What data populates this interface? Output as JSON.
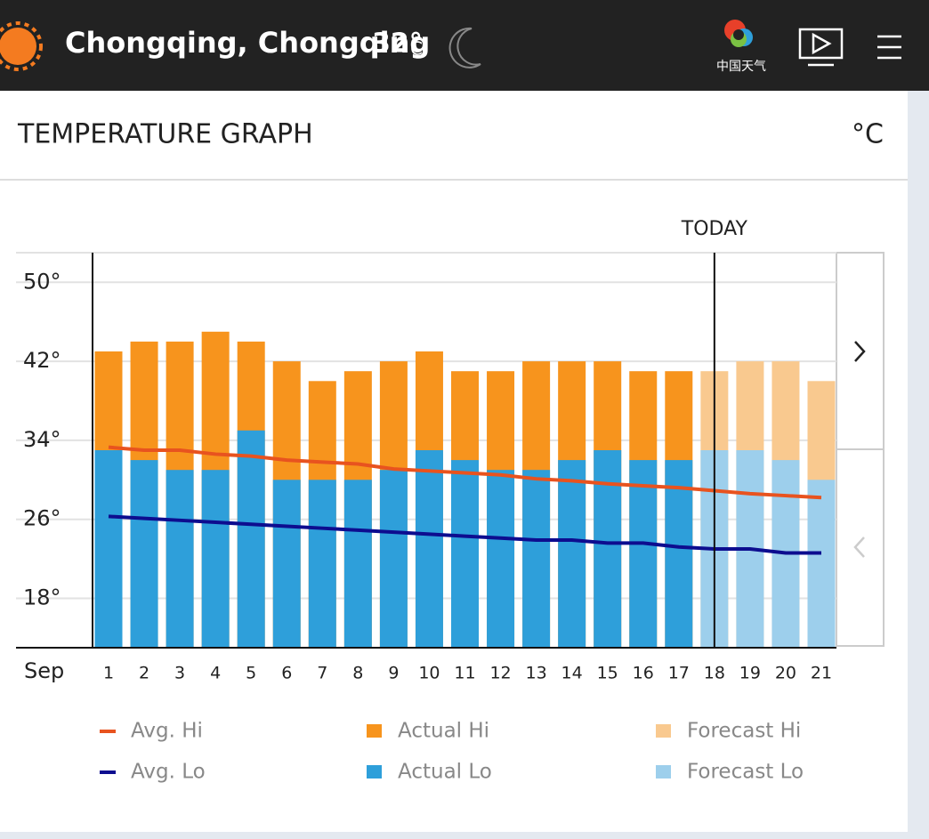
{
  "header": {
    "city": "Chongqing, Chongqing",
    "temperature": "32°",
    "unit": "C",
    "logo_text": "中国天气"
  },
  "panel": {
    "title": "TEMPERATURE GRAPH",
    "unit": "°C"
  },
  "chart_data": {
    "type": "bar",
    "x_label": "Sep",
    "categories": [
      "1",
      "2",
      "3",
      "4",
      "5",
      "6",
      "7",
      "8",
      "9",
      "10",
      "11",
      "12",
      "13",
      "14",
      "15",
      "16",
      "17",
      "18",
      "19",
      "20",
      "21"
    ],
    "ylim": [
      13,
      53
    ],
    "yticks": [
      {
        "value": 18,
        "label": "18°"
      },
      {
        "value": 26,
        "label": "26°"
      },
      {
        "value": 34,
        "label": "34°"
      },
      {
        "value": 42,
        "label": "42°"
      },
      {
        "value": 50,
        "label": "50°"
      }
    ],
    "grid": true,
    "annotations": [
      {
        "text": "TODAY",
        "x": "18"
      }
    ],
    "series": [
      {
        "name": "Actual Hi",
        "kind": "bar",
        "color": "#f7941d",
        "values": [
          43,
          44,
          44,
          45,
          44,
          42,
          40,
          41,
          42,
          43,
          41,
          41,
          42,
          42,
          42,
          41,
          41,
          null,
          null,
          null,
          null
        ]
      },
      {
        "name": "Forecast Hi",
        "kind": "bar",
        "color": "#f9c98f",
        "values": [
          null,
          null,
          null,
          null,
          null,
          null,
          null,
          null,
          null,
          null,
          null,
          null,
          null,
          null,
          null,
          null,
          null,
          41,
          42,
          42,
          40
        ]
      },
      {
        "name": "Actual Lo",
        "kind": "bar",
        "color": "#2e9fda",
        "values": [
          33,
          32,
          31,
          31,
          35,
          30,
          30,
          30,
          31,
          33,
          32,
          31,
          31,
          32,
          33,
          32,
          32,
          null,
          null,
          null,
          null
        ]
      },
      {
        "name": "Forecast Lo",
        "kind": "bar",
        "color": "#9dcfec",
        "values": [
          null,
          null,
          null,
          null,
          null,
          null,
          null,
          null,
          null,
          null,
          null,
          null,
          null,
          null,
          null,
          null,
          null,
          33,
          33,
          32,
          30
        ]
      },
      {
        "name": "Avg. Hi",
        "kind": "line",
        "color": "#e8531f",
        "values": [
          33.3,
          33,
          33,
          32.6,
          32.4,
          32,
          31.8,
          31.6,
          31.1,
          30.9,
          30.7,
          30.5,
          30.1,
          29.9,
          29.6,
          29.4,
          29.2,
          28.9,
          28.6,
          28.4,
          28.2
        ]
      },
      {
        "name": "Avg. Lo",
        "kind": "line",
        "color": "#0d0d8f",
        "values": [
          26.3,
          26.1,
          25.9,
          25.7,
          25.5,
          25.3,
          25.1,
          24.9,
          24.7,
          24.5,
          24.3,
          24.1,
          23.9,
          23.9,
          23.6,
          23.6,
          23.2,
          23,
          23,
          22.6,
          22.6
        ]
      }
    ],
    "legend_order": [
      "Avg. Hi",
      "Actual Hi",
      "Forecast Hi",
      "Avg. Lo",
      "Actual Lo",
      "Forecast Lo"
    ]
  }
}
